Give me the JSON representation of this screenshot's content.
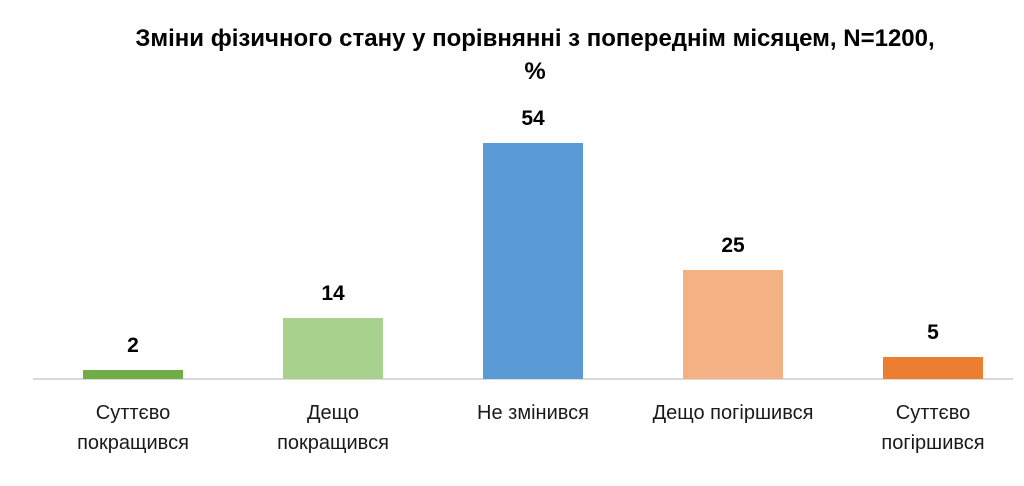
{
  "chart": {
    "title": "Зміни фізичного стану у порівнянні з попереднім місяцем, N=1200, %"
  },
  "chart_data": {
    "type": "bar",
    "title": "Зміни фізичного стану у порівнянні з попереднім місяцем, N=1200, %",
    "categories": [
      "Суттєво\nпокращився",
      "Дещо\nпокращився",
      "Не змінився",
      "Дещо погіршився",
      "Суттєво\nпогіршився"
    ],
    "values": [
      2,
      14,
      54,
      25,
      5
    ],
    "value_labels": [
      "2",
      "14",
      "54",
      "25",
      "5"
    ],
    "bar_colors": [
      "#70AD47",
      "#A9D18E",
      "#5B9BD5",
      "#F4B183",
      "#ED7D31"
    ],
    "xlabel": "",
    "ylabel": "",
    "ylim": [
      0,
      60
    ],
    "grid": false,
    "legend": false,
    "axis_line_color": "#D9D9D9",
    "value_label_color": "#000000",
    "category_label_color": "#1A1A1A"
  }
}
